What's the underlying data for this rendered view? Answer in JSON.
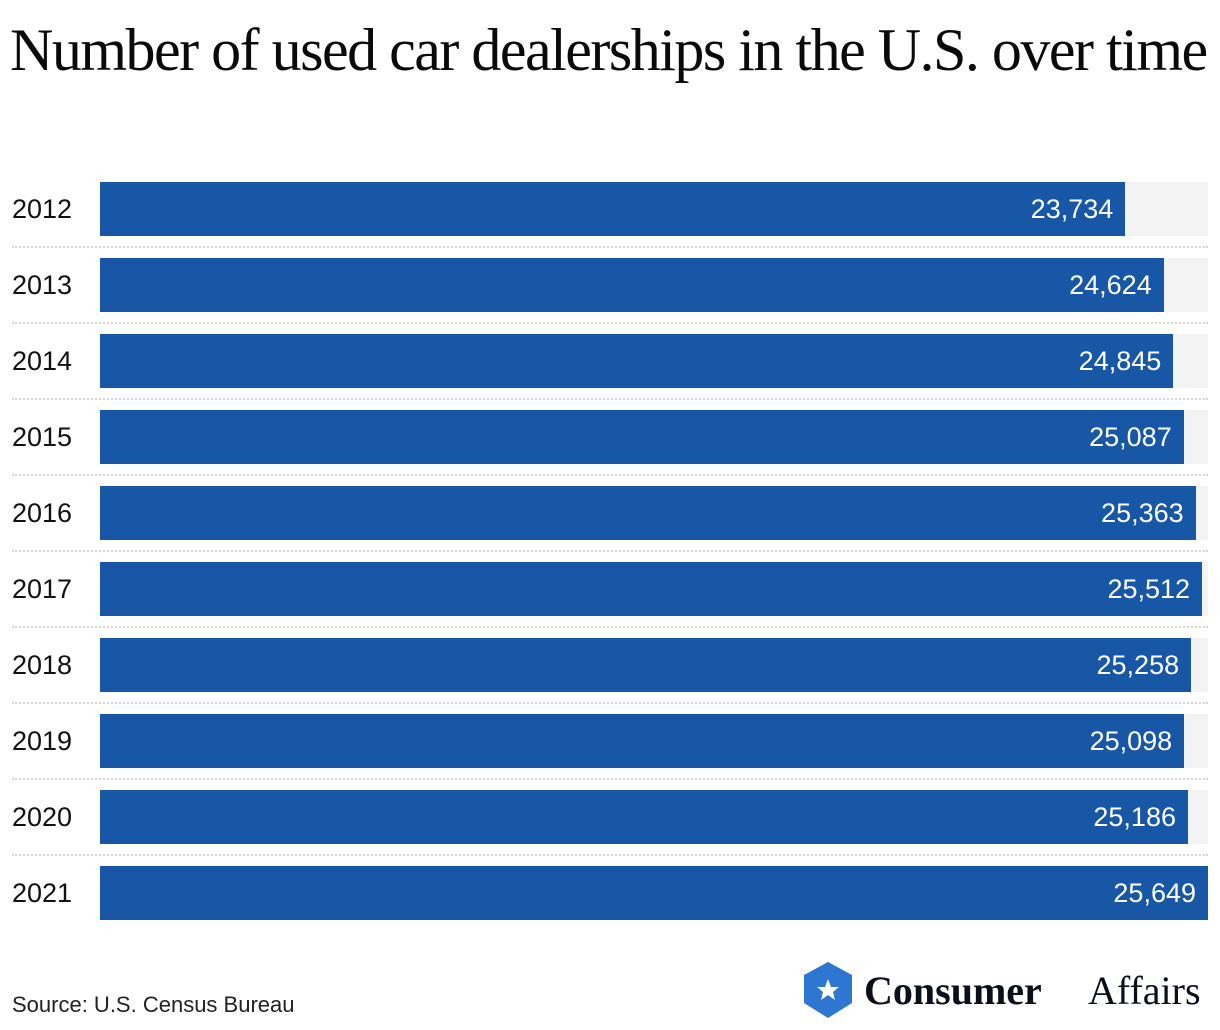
{
  "chart_data": {
    "type": "bar",
    "orientation": "horizontal",
    "title": "Number of used car dealerships in the U.S. over time",
    "categories": [
      "2012",
      "2013",
      "2014",
      "2015",
      "2016",
      "2017",
      "2018",
      "2019",
      "2020",
      "2021"
    ],
    "values": [
      23734,
      24624,
      24845,
      25087,
      25363,
      25512,
      25258,
      25098,
      25186,
      25649
    ],
    "labels": [
      "23,734",
      "24,624",
      "24,845",
      "25,087",
      "25,363",
      "25,512",
      "25,258",
      "25,098",
      "25,186",
      "25,649"
    ],
    "xlim": [
      0,
      25649
    ],
    "grid": false,
    "legend": "none",
    "bar_color": "#1757a6",
    "track_color": "#f3f3f3"
  },
  "footer": {
    "source": "Source: U.S. Census Bureau",
    "logo_text_bold": "Consumer",
    "logo_text_light": "Affairs",
    "logo_color": "#2d77d1",
    "logo_icon": "star-hexagon-icon"
  }
}
